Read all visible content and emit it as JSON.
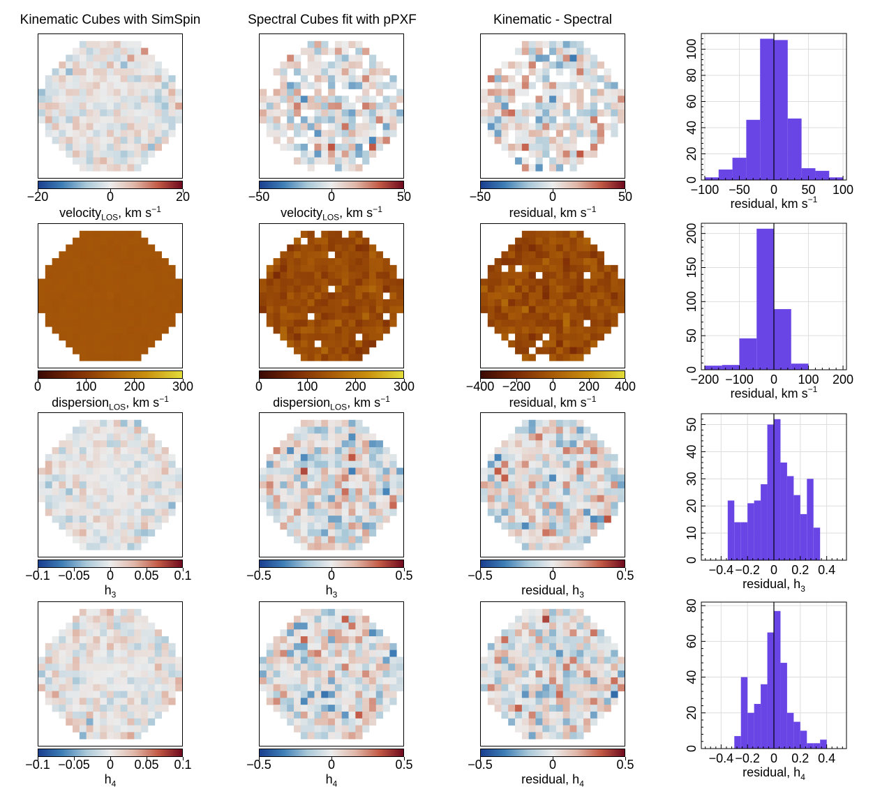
{
  "column_titles": [
    "Kinematic Cubes with SimSpin",
    "Spectral Cubes fit with pPXF",
    "Kinematic - Spectral"
  ],
  "colors": {
    "diverging": [
      "#1a3f8f",
      "#3f7fb6",
      "#a9c8d8",
      "#ececec",
      "#e0b7a8",
      "#c25a45",
      "#6e0a1e"
    ],
    "sequential": [
      "#3b0a05",
      "#7a2a05",
      "#a85a08",
      "#c9900f",
      "#e2dc3a"
    ],
    "histogram_fill": "#6a45e6"
  },
  "colorbars": [
    [
      {
        "type": "diverging",
        "ticks": [
          "−20",
          "0",
          "20"
        ],
        "label_main": "velocity",
        "label_sub": "LOS",
        "label_rest": ", km s",
        "label_sup": "−1"
      },
      {
        "type": "diverging",
        "ticks": [
          "−50",
          "0",
          "50"
        ],
        "label_main": "velocity",
        "label_sub": "LOS",
        "label_rest": ", km s",
        "label_sup": "−1"
      },
      {
        "type": "diverging",
        "ticks": [
          "−50",
          "0",
          "50"
        ],
        "label_main": "residual, km s",
        "label_sub": "",
        "label_rest": "",
        "label_sup": "−1"
      }
    ],
    [
      {
        "type": "sequential",
        "ticks": [
          "0",
          "100",
          "200",
          "300"
        ],
        "label_main": "dispersion",
        "label_sub": "LOS",
        "label_rest": ", km s",
        "label_sup": "−1"
      },
      {
        "type": "sequential",
        "ticks": [
          "0",
          "100",
          "200",
          "300"
        ],
        "label_main": "dispersion",
        "label_sub": "LOS",
        "label_rest": ", km s",
        "label_sup": "−1"
      },
      {
        "type": "sequential",
        "ticks": [
          "−400",
          "−200",
          "0",
          "200",
          "400"
        ],
        "label_main": "residual, km s",
        "label_sub": "",
        "label_rest": "",
        "label_sup": "−1"
      }
    ],
    [
      {
        "type": "diverging",
        "ticks": [
          "−0.1",
          "−0.05",
          "0",
          "0.05",
          "0.1"
        ],
        "label_main": "h",
        "label_sub": "3",
        "label_rest": "",
        "label_sup": ""
      },
      {
        "type": "diverging",
        "ticks": [
          "−0.5",
          "0",
          "0.5"
        ],
        "label_main": "h",
        "label_sub": "3",
        "label_rest": "",
        "label_sup": ""
      },
      {
        "type": "diverging",
        "ticks": [
          "−0.5",
          "0",
          "0.5"
        ],
        "label_main": "residual, h",
        "label_sub": "3",
        "label_rest": "",
        "label_sup": ""
      }
    ],
    [
      {
        "type": "diverging",
        "ticks": [
          "−0.1",
          "−0.05",
          "0",
          "0.05",
          "0.1"
        ],
        "label_main": "h",
        "label_sub": "4",
        "label_rest": "",
        "label_sup": ""
      },
      {
        "type": "diverging",
        "ticks": [
          "−0.5",
          "0",
          "0.5"
        ],
        "label_main": "h",
        "label_sub": "4",
        "label_rest": "",
        "label_sup": ""
      },
      {
        "type": "diverging",
        "ticks": [
          "−0.5",
          "0",
          "0.5"
        ],
        "label_main": "residual, h",
        "label_sub": "4",
        "label_rest": "",
        "label_sup": ""
      }
    ]
  ],
  "chart_data": [
    {
      "type": "bar",
      "xlabel_main": "residual, km s",
      "xlabel_sub": "",
      "xlabel_sup": "−1",
      "xlim": [
        -105,
        105
      ],
      "ylim": [
        0,
        112
      ],
      "xticks": [
        -100,
        -50,
        0,
        50,
        100
      ],
      "xtick_labels": [
        "−100",
        "−50",
        "0",
        "50",
        "100"
      ],
      "yticks": [
        0,
        20,
        40,
        60,
        80,
        100
      ],
      "ytick_labels": [
        "0",
        "20",
        "40",
        "60",
        "80",
        "100"
      ],
      "bin_edges": [
        -100,
        -80,
        -60,
        -40,
        -20,
        0,
        20,
        40,
        60,
        80,
        100
      ],
      "counts": [
        2,
        8,
        17,
        46,
        108,
        107,
        47,
        9,
        7,
        2
      ],
      "grid": true
    },
    {
      "type": "bar",
      "xlabel_main": "residual, km s",
      "xlabel_sub": "",
      "xlabel_sup": "−1",
      "xlim": [
        -210,
        210
      ],
      "ylim": [
        0,
        215
      ],
      "xticks": [
        -200,
        -100,
        0,
        100,
        200
      ],
      "xtick_labels": [
        "−200",
        "−100",
        "0",
        "100",
        "200"
      ],
      "yticks": [
        0,
        50,
        100,
        150,
        200
      ],
      "ytick_labels": [
        "0",
        "50",
        "100",
        "150",
        "200"
      ],
      "bin_edges": [
        -200,
        -150,
        -100,
        -50,
        0,
        50,
        100
      ],
      "counts": [
        6,
        7,
        46,
        207,
        89,
        9
      ],
      "grid": true
    },
    {
      "type": "bar",
      "xlabel_main": "residual, h",
      "xlabel_sub": "3",
      "xlabel_sup": "",
      "xlim": [
        -0.55,
        0.55
      ],
      "ylim": [
        0,
        54
      ],
      "xticks": [
        -0.4,
        -0.2,
        0,
        0.2,
        0.4
      ],
      "xtick_labels": [
        "−0.4",
        "−0.2",
        "0",
        "0.2",
        "0.4"
      ],
      "yticks": [
        0,
        10,
        20,
        30,
        40,
        50
      ],
      "ytick_labels": [
        "0",
        "10",
        "20",
        "30",
        "40",
        "50"
      ],
      "bin_edges": [
        -0.35,
        -0.3,
        -0.25,
        -0.2,
        -0.15,
        -0.1,
        -0.05,
        0,
        0.05,
        0.1,
        0.15,
        0.2,
        0.25,
        0.3,
        0.35
      ],
      "counts": [
        22,
        14,
        14,
        21,
        22,
        28,
        50,
        52,
        36,
        31,
        24,
        17,
        30,
        12
      ],
      "grid": true
    },
    {
      "type": "bar",
      "xlabel_main": "residual, h",
      "xlabel_sub": "4",
      "xlabel_sup": "",
      "xlim": [
        -0.55,
        0.55
      ],
      "ylim": [
        0,
        82
      ],
      "xticks": [
        -0.4,
        -0.2,
        0,
        0.2,
        0.4
      ],
      "xtick_labels": [
        "−0.4",
        "−0.2",
        "0",
        "0.2",
        "0.4"
      ],
      "yticks": [
        0,
        20,
        40,
        60,
        80
      ],
      "ytick_labels": [
        "0",
        "20",
        "40",
        "60",
        "80"
      ],
      "bin_edges": [
        -0.3,
        -0.25,
        -0.2,
        -0.15,
        -0.1,
        -0.05,
        0,
        0.05,
        0.1,
        0.15,
        0.2,
        0.25,
        0.3,
        0.35,
        0.4
      ],
      "counts": [
        7,
        40,
        20,
        25,
        36,
        65,
        77,
        48,
        20,
        15,
        10,
        3,
        3,
        5
      ],
      "grid": true
    }
  ]
}
